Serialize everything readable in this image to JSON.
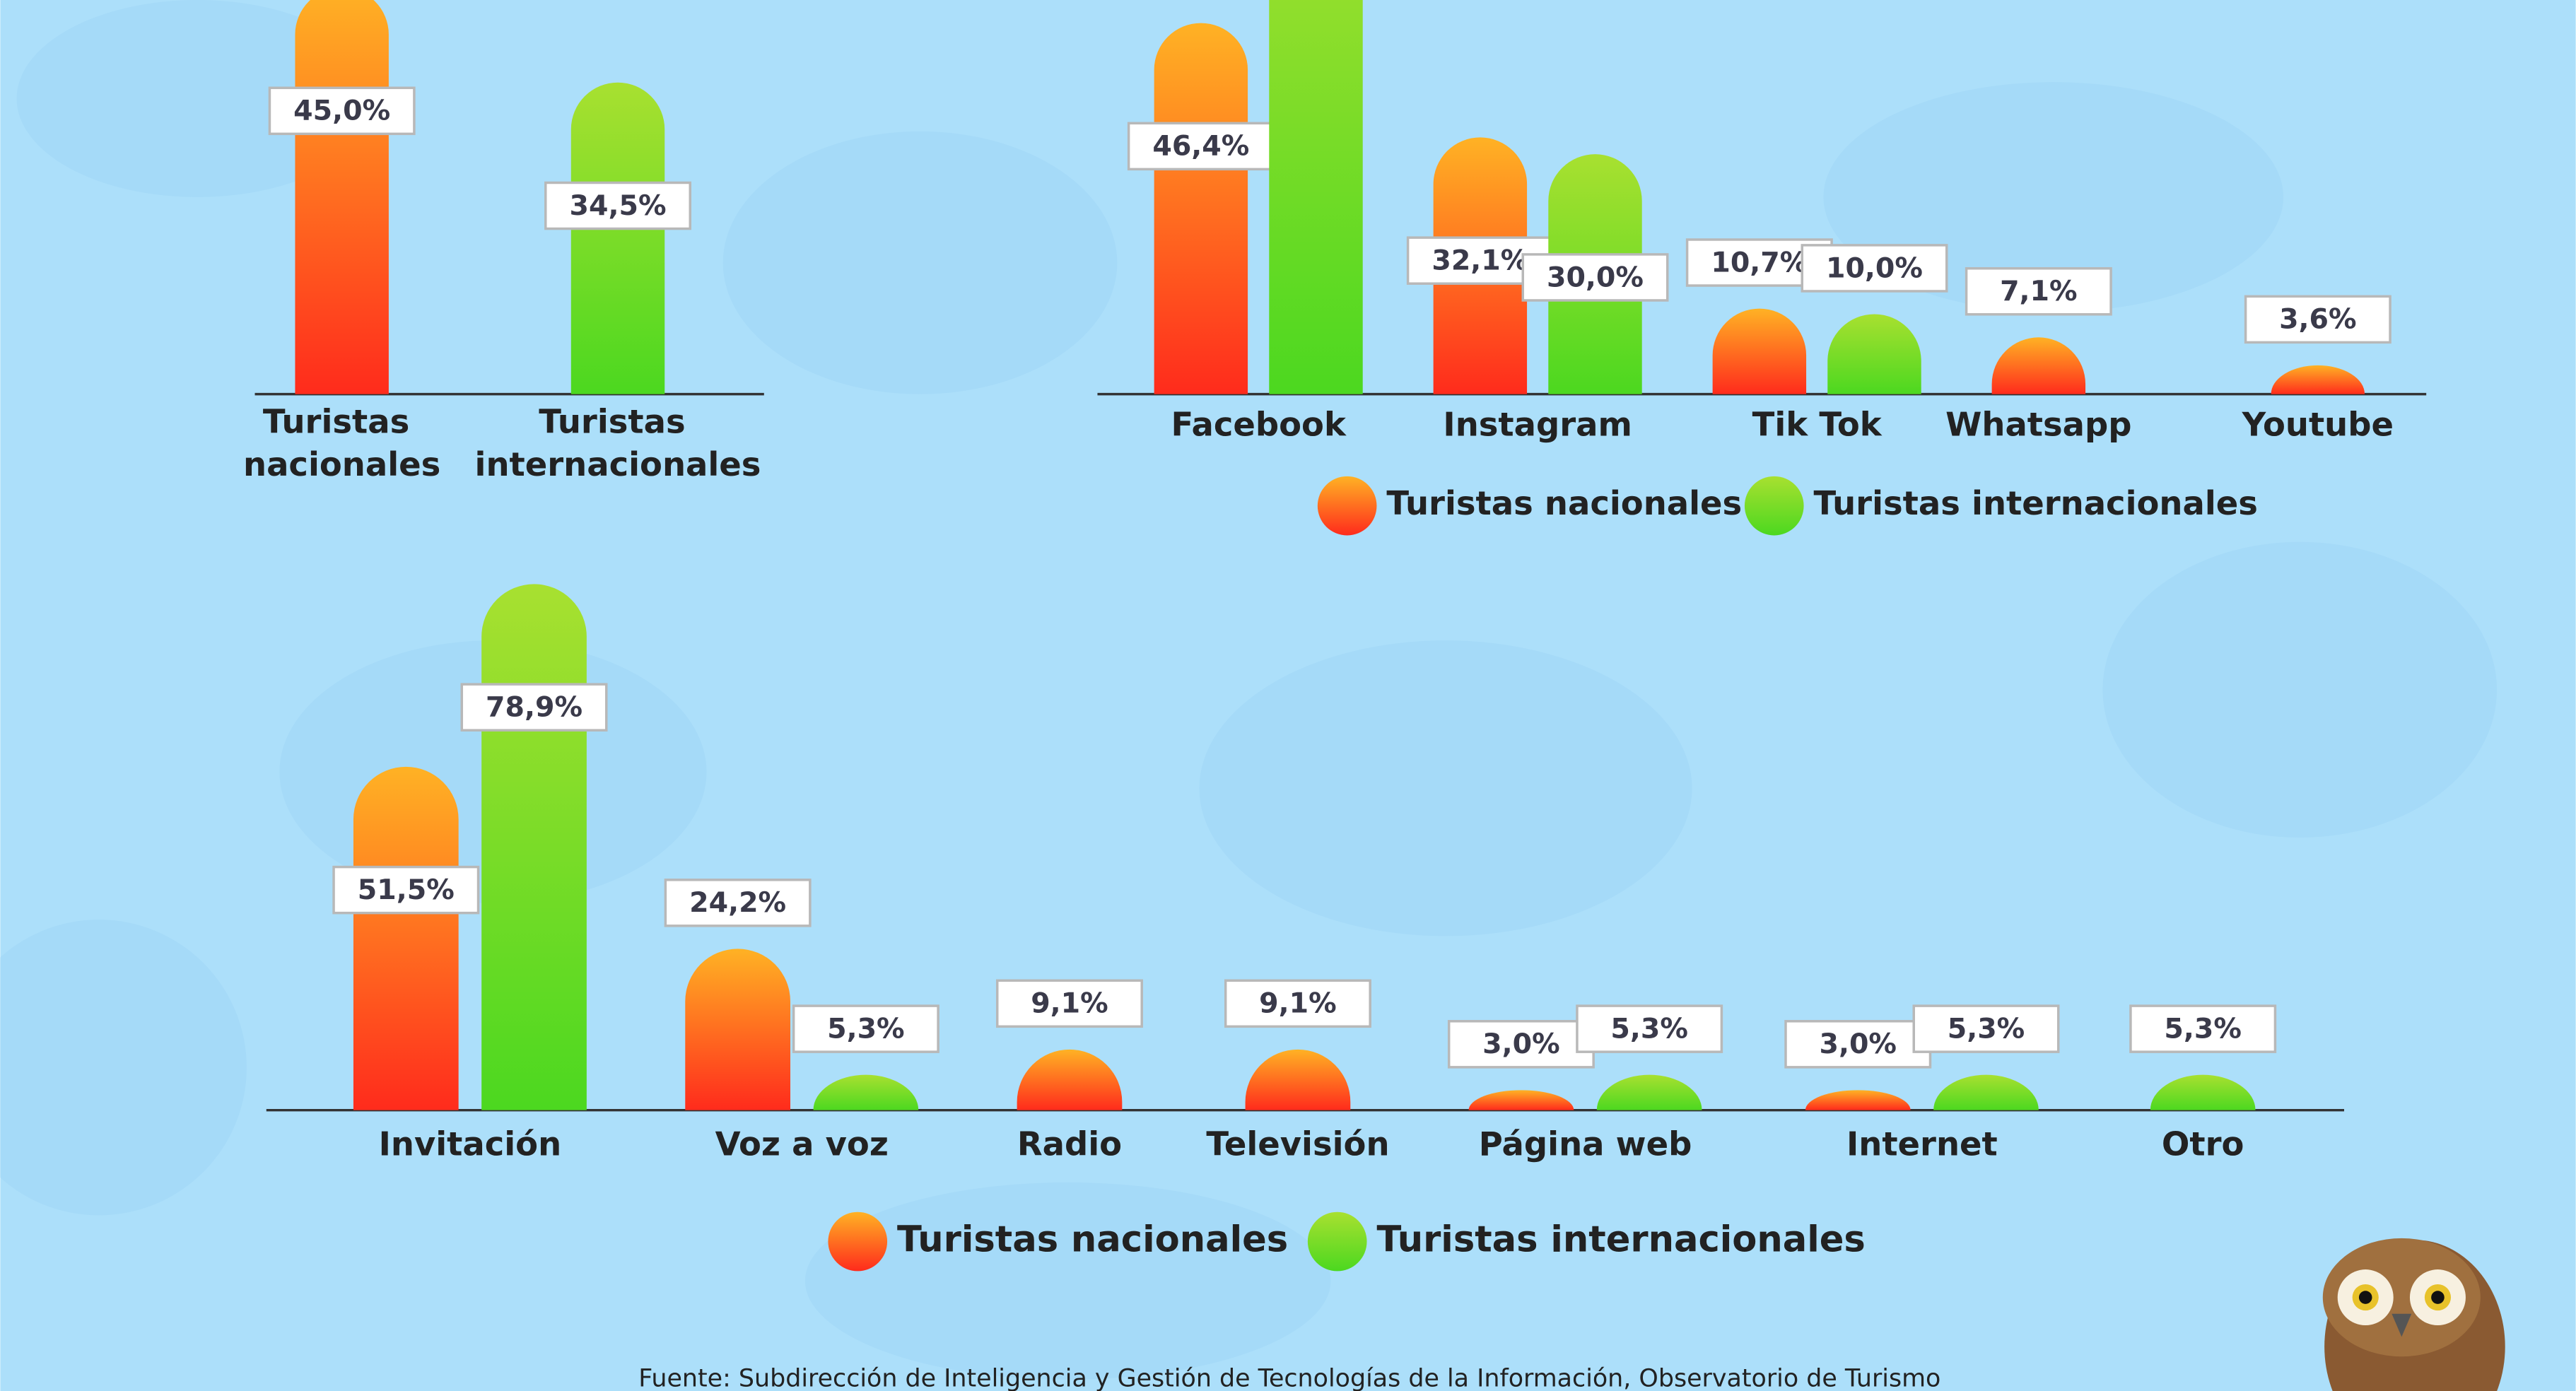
{
  "chart_data": [
    {
      "type": "bar",
      "categories": [
        "Turistas nacionales",
        "Turistas internacionales"
      ],
      "values": [
        45.0,
        34.5
      ],
      "value_labels": [
        "45,0%",
        "34,5%"
      ],
      "colors": [
        [
          "#ffb224",
          "#ff2b1c"
        ],
        [
          "#a8e030",
          "#4cd820"
        ]
      ]
    },
    {
      "type": "bar",
      "categories": [
        "Facebook",
        "Instagram",
        "Tik Tok",
        "Whatsapp",
        "Youtube"
      ],
      "series": [
        {
          "name": "Turistas nacionales",
          "colors": [
            "#ffb224",
            "#ff2b1c"
          ],
          "values": [
            46.4,
            32.1,
            10.7,
            7.1,
            3.6
          ],
          "value_labels": [
            "46,4%",
            "32,1%",
            "10,7%",
            "7,1%",
            "3,6%"
          ]
        },
        {
          "name": "Turistas internacionales",
          "colors": [
            "#a8e030",
            "#4cd820"
          ],
          "values": [
            65.7,
            30.0,
            10.0,
            null,
            null
          ],
          "value_labels": [
            null,
            "30,0%",
            "10,0%",
            null,
            null
          ]
        }
      ],
      "legend": "bottom"
    },
    {
      "type": "bar",
      "categories": [
        "Invitación",
        "Voz a voz",
        "Radio",
        "Televisión",
        "Página web",
        "Internet",
        "Otro"
      ],
      "series": [
        {
          "name": "Turistas nacionales",
          "colors": [
            "#ffb224",
            "#ff2b1c"
          ],
          "values": [
            51.5,
            24.2,
            9.1,
            9.1,
            3.0,
            3.0,
            null
          ],
          "value_labels": [
            "51,5%",
            "24,2%",
            "9,1%",
            "9,1%",
            "3,0%",
            "3,0%",
            null
          ]
        },
        {
          "name": "Turistas internacionales",
          "colors": [
            "#a8e030",
            "#4cd820"
          ],
          "values": [
            78.9,
            5.3,
            null,
            null,
            5.3,
            5.3,
            5.3
          ],
          "value_labels": [
            "78,9%",
            "5,3%",
            null,
            null,
            "5,3%",
            "5,3%",
            "5,3%"
          ]
        }
      ],
      "legend": "bottom"
    }
  ],
  "source": "Fuente: Subdirección de Inteligencia y Gestión de Tecnologías de la Información, Observatorio de Turismo"
}
